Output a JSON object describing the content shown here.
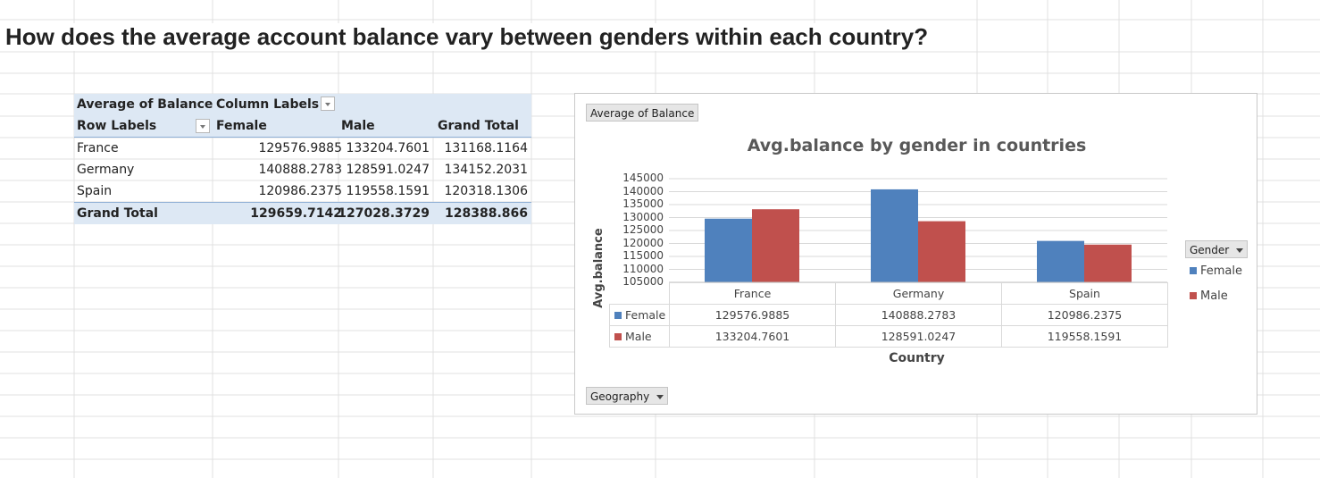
{
  "sheet": {
    "question": "How does the average account balance vary between genders within each country?"
  },
  "pivot": {
    "value_field": "Average of Balance",
    "column_labels": "Column Labels",
    "row_labels": "Row Labels",
    "columns": [
      "Female",
      "Male",
      "Grand Total"
    ],
    "rows": [
      {
        "label": "France",
        "values": [
          "129576.9885",
          "133204.7601",
          "131168.1164"
        ]
      },
      {
        "label": "Germany",
        "values": [
          "140888.2783",
          "128591.0247",
          "134152.2031"
        ]
      },
      {
        "label": "Spain",
        "values": [
          "120986.2375",
          "119558.1591",
          "120318.1306"
        ]
      }
    ],
    "grand_total": {
      "label": "Grand Total",
      "values": [
        "129659.7142",
        "127028.3729",
        "128388.866"
      ]
    }
  },
  "chart": {
    "value_button": "Average of Balance",
    "axis_button": "Geography",
    "legend_button": "Gender",
    "colors": {
      "Female": "#4f81bd",
      "Male": "#c0504d"
    }
  },
  "chart_data": {
    "type": "bar",
    "title": "Avg.balance by gender in countries",
    "xlabel": "Country",
    "ylabel": "Avg.balance",
    "categories": [
      "France",
      "Germany",
      "Spain"
    ],
    "series": [
      {
        "name": "Female",
        "values": [
          129576.9885,
          140888.2783,
          120986.2375
        ],
        "labels": [
          "129576.9885",
          "140888.2783",
          "120986.2375"
        ]
      },
      {
        "name": "Male",
        "values": [
          133204.7601,
          128591.0247,
          119558.1591
        ],
        "labels": [
          "133204.7601",
          "128591.0247",
          "119558.1591"
        ]
      }
    ],
    "ylim": [
      105000,
      145000
    ],
    "yticks": [
      "145000",
      "140000",
      "135000",
      "130000",
      "125000",
      "120000",
      "115000",
      "110000",
      "105000"
    ],
    "grid": true,
    "legend": "right",
    "data_table": true
  }
}
